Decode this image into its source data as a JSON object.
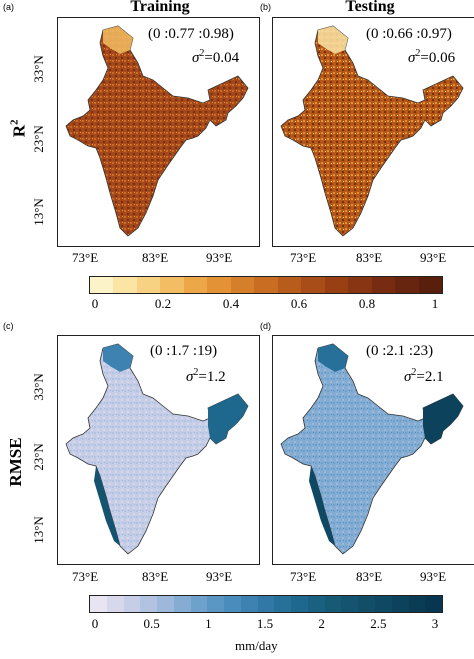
{
  "panels": {
    "a": {
      "letter": "(a)",
      "range": "(0 :0.77 :0.98)",
      "sigma_label": "σ",
      "sigma_exp": "2",
      "sigma_value": "=0.04"
    },
    "b": {
      "letter": "(b)",
      "range": "(0 :0.66 :0.97)",
      "sigma_label": "σ",
      "sigma_exp": "2",
      "sigma_value": "=0.06"
    },
    "c": {
      "letter": "(c)",
      "range": "(0 :1.7 :19)",
      "sigma_label": "σ",
      "sigma_exp": "2",
      "sigma_value": "=1.2"
    },
    "d": {
      "letter": "(d)",
      "range": "(0 :2.1 :23)",
      "sigma_label": "σ",
      "sigma_exp": "2",
      "sigma_value": "=2.1"
    }
  },
  "columns": {
    "training": "Training",
    "testing": "Testing"
  },
  "rows": {
    "r2_base": "R",
    "r2_exp": "2",
    "rmse": "RMSE"
  },
  "axes": {
    "y_ticks": [
      "33°N",
      "23°N",
      "13°N"
    ],
    "x_ticks": [
      "73°E",
      "83°E",
      "93°E"
    ]
  },
  "colorbar_top": {
    "ticks": [
      "0",
      "0.2",
      "0.4",
      "0.6",
      "0.8",
      "1"
    ],
    "colors": [
      "#fdf3c9",
      "#fbe4a4",
      "#f8d283",
      "#f3bd63",
      "#eea748",
      "#e39236",
      "#d67f2a",
      "#c86d21",
      "#b85c1b",
      "#a84d17",
      "#984014",
      "#873512",
      "#772c11",
      "#67240f",
      "#5a1e0d"
    ]
  },
  "colorbar_bottom": {
    "ticks": [
      "0",
      "0.5",
      "1",
      "1.5",
      "2",
      "2.5",
      "3"
    ],
    "unit": "mm/day",
    "colors": [
      "#e8e4f2",
      "#d8d8ec",
      "#c6cde6",
      "#b1c3e0",
      "#9cb8da",
      "#85add3",
      "#6ea2cc",
      "#5a97c4",
      "#4a8cbb",
      "#3d82b1",
      "#3178a6",
      "#26709a",
      "#1e688d",
      "#1a6181",
      "#165a76",
      "#145470",
      "#124e68",
      "#0f4863",
      "#0c425c",
      "#0a3c55",
      "#073650"
    ]
  }
}
